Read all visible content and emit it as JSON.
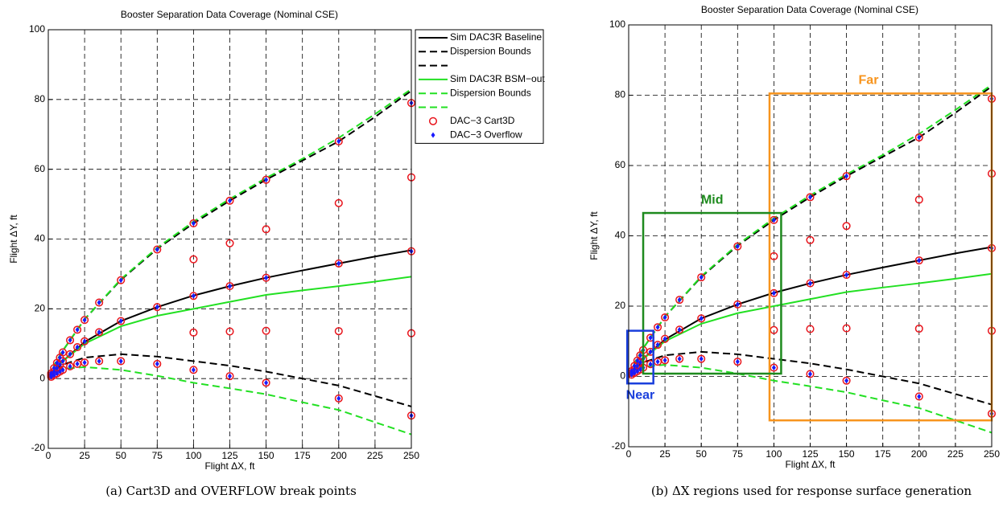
{
  "chart_data": [
    {
      "type": "line",
      "title": "Booster Separation Data Coverage (Nominal CSE)",
      "caption": "(a) Cart3D and OVERFLOW break points",
      "xlabel": "Flight ΔX, ft",
      "ylabel": "Flight ΔY, ft",
      "xlim": [
        0,
        250
      ],
      "ylim": [
        -20,
        100
      ],
      "xticks": [
        0,
        25,
        50,
        75,
        100,
        125,
        150,
        175,
        200,
        225,
        250
      ],
      "yticks": [
        -20,
        0,
        20,
        40,
        60,
        80,
        100
      ],
      "grid": true,
      "legend": "outside-right",
      "series": [
        {
          "name": "Sim DAC3R Baseline",
          "mode": "line",
          "dash": false,
          "color": "#000000",
          "x": [
            0,
            5,
            10,
            25,
            50,
            75,
            100,
            125,
            150,
            175,
            200,
            225,
            250
          ],
          "values": [
            0,
            3,
            5,
            10.5,
            16.5,
            20.5,
            23.8,
            26.5,
            28.9,
            31,
            33,
            35,
            36.8
          ]
        },
        {
          "name": "Dispersion Bounds",
          "mode": "line",
          "dash": true,
          "color": "#000000",
          "x": [
            0,
            5,
            10,
            25,
            50,
            75,
            100,
            125,
            150,
            175,
            200,
            225,
            250
          ],
          "values": [
            0,
            4.5,
            8,
            17,
            28.3,
            37.2,
            44.5,
            51,
            57,
            62.5,
            68,
            75,
            82.5
          ]
        },
        {
          "mode": "line",
          "dash": true,
          "color": "#000000",
          "x": [
            0,
            5,
            10,
            25,
            50,
            75,
            100,
            125,
            150,
            175,
            200,
            225,
            250
          ],
          "values": [
            0,
            2.5,
            4,
            6,
            7,
            6.3,
            5,
            3.7,
            2,
            0,
            -2,
            -5,
            -8
          ]
        },
        {
          "name": "Sim DAC3R BSM−out",
          "mode": "line",
          "dash": false,
          "color": "#22e022",
          "x": [
            0,
            5,
            10,
            25,
            50,
            75,
            100,
            125,
            150,
            175,
            200,
            225,
            250
          ],
          "values": [
            0,
            3,
            5,
            10,
            15,
            18,
            20,
            22,
            24,
            25.3,
            26.5,
            27.8,
            29.2
          ]
        },
        {
          "name": "Dispersion Bounds",
          "mode": "line",
          "dash": true,
          "color": "#22e022",
          "x": [
            0,
            5,
            10,
            25,
            50,
            75,
            100,
            125,
            150,
            175,
            200,
            225,
            250
          ],
          "values": [
            0,
            4.5,
            8,
            17,
            28.5,
            37.5,
            45,
            51.5,
            57.5,
            63,
            69,
            75.8,
            83
          ]
        },
        {
          "mode": "line",
          "dash": true,
          "color": "#22e022",
          "x": [
            0,
            5,
            10,
            25,
            50,
            75,
            100,
            125,
            150,
            175,
            200,
            225,
            250
          ],
          "values": [
            0,
            2,
            2.8,
            3.3,
            2.5,
            0.8,
            -1.2,
            -2.8,
            -4.5,
            -6.8,
            -9,
            -12.5,
            -16
          ]
        },
        {
          "name": "DAC−3 Cart3D",
          "mode": "markers",
          "marker": "circle",
          "color": "#e8141c",
          "x": [
            2,
            4,
            6,
            8,
            10,
            15,
            20,
            25,
            35,
            50,
            75,
            100,
            125,
            150,
            200,
            250,
            2,
            4,
            6,
            8,
            10,
            15,
            20,
            25,
            35,
            50,
            75,
            100,
            125,
            150,
            200,
            250,
            2,
            4,
            6,
            8,
            10,
            15,
            20,
            25,
            35,
            50,
            75,
            100,
            125,
            150,
            200,
            250,
            100,
            100,
            125,
            125,
            150,
            150,
            200,
            200,
            250,
            250
          ],
          "values": [
            1.5,
            3,
            4.5,
            6,
            7.5,
            11,
            14,
            16.8,
            21.8,
            28.2,
            37,
            44.5,
            51,
            57,
            68,
            79,
            1,
            2,
            3,
            4,
            5,
            7,
            9,
            10.7,
            13.3,
            16.5,
            20.5,
            23.7,
            26.5,
            28.9,
            33,
            36.5,
            0.5,
            1,
            1.5,
            2,
            2.5,
            3.5,
            4.2,
            4.6,
            5,
            5,
            4.2,
            2.5,
            0.7,
            -1.2,
            -5.7,
            -10.6,
            34.2,
            13.2,
            38.8,
            13.5,
            42.8,
            13.7,
            50.3,
            13.6,
            57.7,
            13
          ]
        },
        {
          "name": "DAC−3 Overflow",
          "mode": "markers",
          "marker": "diamond",
          "color": "#1a1aff",
          "x": [
            2,
            4,
            6,
            8,
            10,
            15,
            20,
            25,
            35,
            50,
            75,
            100,
            125,
            150,
            200,
            250,
            2,
            4,
            6,
            8,
            10,
            15,
            20,
            25,
            35,
            50,
            75,
            100,
            125,
            150,
            200,
            250,
            2,
            4,
            6,
            8,
            10,
            15,
            20,
            25,
            35,
            50,
            75,
            100,
            125,
            150,
            200,
            250
          ],
          "values": [
            1.5,
            3,
            4.5,
            6,
            7.5,
            11,
            14,
            16.8,
            21.8,
            28.2,
            37,
            44.5,
            51,
            57,
            68,
            79,
            1,
            2,
            3,
            4,
            5,
            7,
            9,
            10.7,
            13.3,
            16.5,
            20.5,
            23.7,
            26.5,
            28.9,
            33,
            36.5,
            0.5,
            1,
            1.5,
            2,
            2.5,
            3.5,
            4.2,
            4.6,
            5,
            5,
            4.2,
            2.5,
            0.7,
            -1.2,
            -5.7,
            -10.6
          ]
        }
      ]
    },
    {
      "type": "line",
      "title": "Booster Separation Data Coverage (Nominal CSE)",
      "caption": "(b) ΔX regions used for response surface generation",
      "xlabel": "Flight ΔX, ft",
      "ylabel": "Flight ΔY, ft",
      "xlim": [
        0,
        250
      ],
      "ylim": [
        -20,
        100
      ],
      "xticks": [
        0,
        25,
        50,
        75,
        100,
        125,
        150,
        175,
        200,
        225,
        250
      ],
      "yticks": [
        -20,
        0,
        20,
        40,
        60,
        80,
        100
      ],
      "grid": true,
      "series": [
        {
          "mode": "line",
          "dash": false,
          "color": "#000000",
          "x": [
            0,
            5,
            10,
            25,
            50,
            75,
            100,
            125,
            150,
            175,
            200,
            225,
            250
          ],
          "values": [
            0,
            3,
            5,
            10.5,
            16.5,
            20.5,
            23.8,
            26.5,
            28.9,
            31,
            33,
            35,
            36.8
          ]
        },
        {
          "mode": "line",
          "dash": true,
          "color": "#000000",
          "x": [
            0,
            5,
            10,
            25,
            50,
            75,
            100,
            125,
            150,
            175,
            200,
            225,
            250
          ],
          "values": [
            0,
            4.5,
            8,
            17,
            28.3,
            37.2,
            44.5,
            51,
            57,
            62.5,
            68,
            75,
            82.5
          ]
        },
        {
          "mode": "line",
          "dash": true,
          "color": "#000000",
          "x": [
            0,
            5,
            10,
            25,
            50,
            75,
            100,
            125,
            150,
            175,
            200,
            225,
            250
          ],
          "values": [
            0,
            2.5,
            4,
            6,
            7,
            6.3,
            5,
            3.7,
            2,
            0,
            -2,
            -5,
            -8
          ]
        },
        {
          "mode": "line",
          "dash": false,
          "color": "#22e022",
          "x": [
            0,
            5,
            10,
            25,
            50,
            75,
            100,
            125,
            150,
            175,
            200,
            225,
            250
          ],
          "values": [
            0,
            3,
            5,
            10,
            15,
            18,
            20,
            22,
            24,
            25.3,
            26.5,
            27.8,
            29.2
          ]
        },
        {
          "mode": "line",
          "dash": true,
          "color": "#22e022",
          "x": [
            0,
            5,
            10,
            25,
            50,
            75,
            100,
            125,
            150,
            175,
            200,
            225,
            250
          ],
          "values": [
            0,
            4.5,
            8,
            17,
            28.5,
            37.5,
            45,
            51.5,
            57.5,
            63,
            69,
            75.8,
            83
          ]
        },
        {
          "mode": "line",
          "dash": true,
          "color": "#22e022",
          "x": [
            0,
            5,
            10,
            25,
            50,
            75,
            100,
            125,
            150,
            175,
            200,
            225,
            250
          ],
          "values": [
            0,
            2,
            2.8,
            3.3,
            2.5,
            0.8,
            -1.2,
            -2.8,
            -4.5,
            -6.8,
            -9,
            -12.5,
            -16
          ]
        },
        {
          "mode": "markers",
          "marker": "circle",
          "color": "#e8141c",
          "x": [
            2,
            4,
            6,
            8,
            10,
            15,
            20,
            25,
            35,
            50,
            75,
            100,
            125,
            150,
            200,
            250,
            2,
            4,
            6,
            8,
            10,
            15,
            20,
            25,
            35,
            50,
            75,
            100,
            125,
            150,
            200,
            250,
            2,
            4,
            6,
            8,
            10,
            15,
            20,
            25,
            35,
            50,
            75,
            100,
            125,
            150,
            200,
            250,
            100,
            100,
            125,
            125,
            150,
            150,
            200,
            200,
            250,
            250
          ],
          "values": [
            1.5,
            3,
            4.5,
            6,
            7.5,
            11,
            14,
            16.8,
            21.8,
            28.2,
            37,
            44.5,
            51,
            57,
            68,
            79,
            1,
            2,
            3,
            4,
            5,
            7,
            9,
            10.7,
            13.3,
            16.5,
            20.5,
            23.7,
            26.5,
            28.9,
            33,
            36.5,
            0.5,
            1,
            1.5,
            2,
            2.5,
            3.5,
            4.2,
            4.6,
            5,
            5,
            4.2,
            2.5,
            0.7,
            -1.2,
            -5.7,
            -10.6,
            34.2,
            13.2,
            38.8,
            13.5,
            42.8,
            13.7,
            50.3,
            13.6,
            57.7,
            13
          ]
        },
        {
          "mode": "markers",
          "marker": "diamond",
          "color": "#1a1aff",
          "x": [
            2,
            4,
            6,
            8,
            10,
            15,
            20,
            25,
            35,
            50,
            75,
            100,
            125,
            150,
            200,
            250,
            2,
            4,
            6,
            8,
            10,
            15,
            20,
            25,
            35,
            50,
            75,
            100,
            125,
            150,
            200,
            250,
            2,
            4,
            6,
            8,
            10,
            15,
            20,
            25,
            35,
            50,
            75,
            100,
            125,
            150,
            200,
            250
          ],
          "values": [
            1.5,
            3,
            4.5,
            6,
            7.5,
            11,
            14,
            16.8,
            21.8,
            28.2,
            37,
            44.5,
            51,
            57,
            68,
            79,
            1,
            2,
            3,
            4,
            5,
            7,
            9,
            10.7,
            13.3,
            16.5,
            20.5,
            23.7,
            26.5,
            28.9,
            33,
            36.5,
            0.5,
            1,
            1.5,
            2,
            2.5,
            3.5,
            4.2,
            4.6,
            5,
            5,
            4.2,
            2.5,
            0.7,
            -1.2,
            -5.7,
            -10.6
          ]
        }
      ],
      "regions": [
        {
          "label": "Far",
          "color": "#f7941d",
          "xlim": [
            97,
            250
          ],
          "ylim": [
            -12.5,
            80.5
          ]
        },
        {
          "label": "Mid",
          "color": "#1e8a1e",
          "xlim": [
            10,
            105
          ],
          "ylim": [
            0.8,
            46.5
          ]
        },
        {
          "label": "Near",
          "color": "#1a3fdc",
          "xlim": [
            -1,
            17
          ],
          "ylim": [
            -2,
            13
          ]
        }
      ]
    }
  ]
}
